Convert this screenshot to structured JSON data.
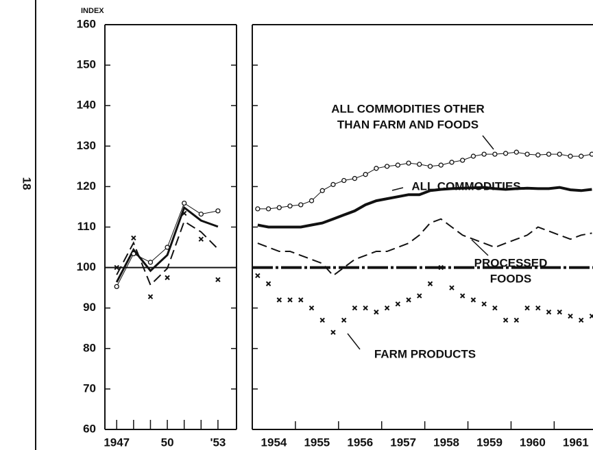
{
  "page_number": "18",
  "chart_data": [
    {
      "type": "line",
      "ylabel": "INDEX",
      "x": [
        1947,
        1948,
        1949,
        1950,
        1951,
        1952,
        1953
      ],
      "xlim": [
        1946.3,
        1954.1
      ],
      "xticks": [
        {
          "value": 1947,
          "label": "1947"
        },
        {
          "value": 1950,
          "label": "50"
        },
        {
          "value": 1953,
          "label": "'53"
        }
      ],
      "ylim": [
        60,
        160
      ],
      "yticks": [
        60,
        70,
        80,
        90,
        100,
        110,
        120,
        130,
        140,
        150,
        160
      ],
      "reference_line": 100,
      "series": [
        {
          "color": "#111",
          "style": "solid",
          "width": 3,
          "marker": "none",
          "values": [
            96.4,
            104.4,
            99.2,
            103.1,
            114.8,
            111.6,
            110.1
          ]
        },
        {
          "color": "#111",
          "style": "solid",
          "width": 1,
          "marker": "circle",
          "values": [
            95.3,
            103.4,
            101.3,
            105.0,
            115.9,
            113.2,
            114.0
          ]
        },
        {
          "color": "#111",
          "style": "dashed",
          "width": 2,
          "marker": "none",
          "values": [
            98.2,
            106.1,
            95.7,
            99.8,
            111.4,
            108.8,
            104.6
          ]
        },
        {
          "color": "#111",
          "style": "none",
          "width": 1,
          "marker": "x",
          "values": [
            100.0,
            107.3,
            92.8,
            97.5,
            113.4,
            107.0,
            97.0
          ]
        }
      ]
    },
    {
      "type": "line",
      "x": [
        1954.125,
        1954.375,
        1954.625,
        1954.875,
        1955.125,
        1955.375,
        1955.625,
        1955.875,
        1956.125,
        1956.375,
        1956.625,
        1956.875,
        1957.125,
        1957.375,
        1957.625,
        1957.875,
        1958.125,
        1958.375,
        1958.625,
        1958.875,
        1959.125,
        1959.375,
        1959.625,
        1959.875,
        1960.125,
        1960.375,
        1960.625,
        1960.875,
        1961.125,
        1961.375,
        1961.625,
        1961.875
      ],
      "xlim": [
        1954,
        1961.9
      ],
      "xticks": [
        {
          "value": 1954.5,
          "label": "1954"
        },
        {
          "value": 1955.5,
          "label": "1955"
        },
        {
          "value": 1956.5,
          "label": "1956"
        },
        {
          "value": 1957.5,
          "label": "1957"
        },
        {
          "value": 1958.5,
          "label": "1958"
        },
        {
          "value": 1959.5,
          "label": "1959"
        },
        {
          "value": 1960.5,
          "label": "1960"
        },
        {
          "value": 1961.5,
          "label": "1961"
        }
      ],
      "ylim": [
        60,
        160
      ],
      "reference_line": 100,
      "series": [
        {
          "color": "#111",
          "style": "solid",
          "width": 4,
          "marker": "none",
          "values": [
            110.5,
            110,
            110,
            110,
            110,
            110.5,
            111,
            112,
            113,
            114,
            115.5,
            116.5,
            117,
            117.5,
            118,
            118,
            119,
            119.3,
            119.5,
            119.6,
            119.7,
            119.8,
            119.5,
            119.3,
            119.5,
            119.6,
            119.5,
            119.5,
            119.8,
            119.2,
            119,
            119.3
          ]
        },
        {
          "color": "#111",
          "style": "solid",
          "width": 1,
          "marker": "circle",
          "values": [
            114.5,
            114.5,
            114.8,
            115.2,
            115.5,
            116.5,
            119,
            120.5,
            121.5,
            122,
            123,
            124.5,
            125,
            125.3,
            125.8,
            125.5,
            125,
            125.3,
            126,
            126.5,
            127.5,
            128,
            128,
            128.2,
            128.5,
            128,
            127.8,
            128,
            128,
            127.5,
            127.5,
            128
          ]
        },
        {
          "color": "#111",
          "style": "dashed",
          "width": 2,
          "marker": "none",
          "values": [
            106,
            105,
            104,
            104,
            103,
            102,
            101,
            98,
            100,
            102,
            103,
            104,
            104,
            105,
            106,
            108,
            111,
            112,
            110,
            108,
            107,
            106,
            105,
            106,
            107,
            108,
            110,
            109,
            108,
            107,
            108,
            108.5
          ]
        },
        {
          "color": "#111",
          "style": "none",
          "width": 1,
          "marker": "x",
          "values": [
            98,
            96,
            92,
            92,
            92,
            90,
            87,
            84,
            87,
            90,
            90,
            89,
            90,
            91,
            92,
            93,
            96,
            100,
            95,
            93,
            92,
            91,
            90,
            87,
            87,
            90,
            90,
            89,
            89,
            88,
            87,
            88
          ]
        }
      ],
      "annotations": [
        {
          "lines": [
            "ALL COMMODITIES OTHER",
            "THAN FARM AND FOODS"
          ]
        },
        {
          "lines": [
            "ALL COMMODITIES"
          ]
        },
        {
          "lines": [
            "PROCESSED",
            "FOODS"
          ]
        },
        {
          "lines": [
            "FARM PRODUCTS"
          ]
        }
      ]
    }
  ]
}
